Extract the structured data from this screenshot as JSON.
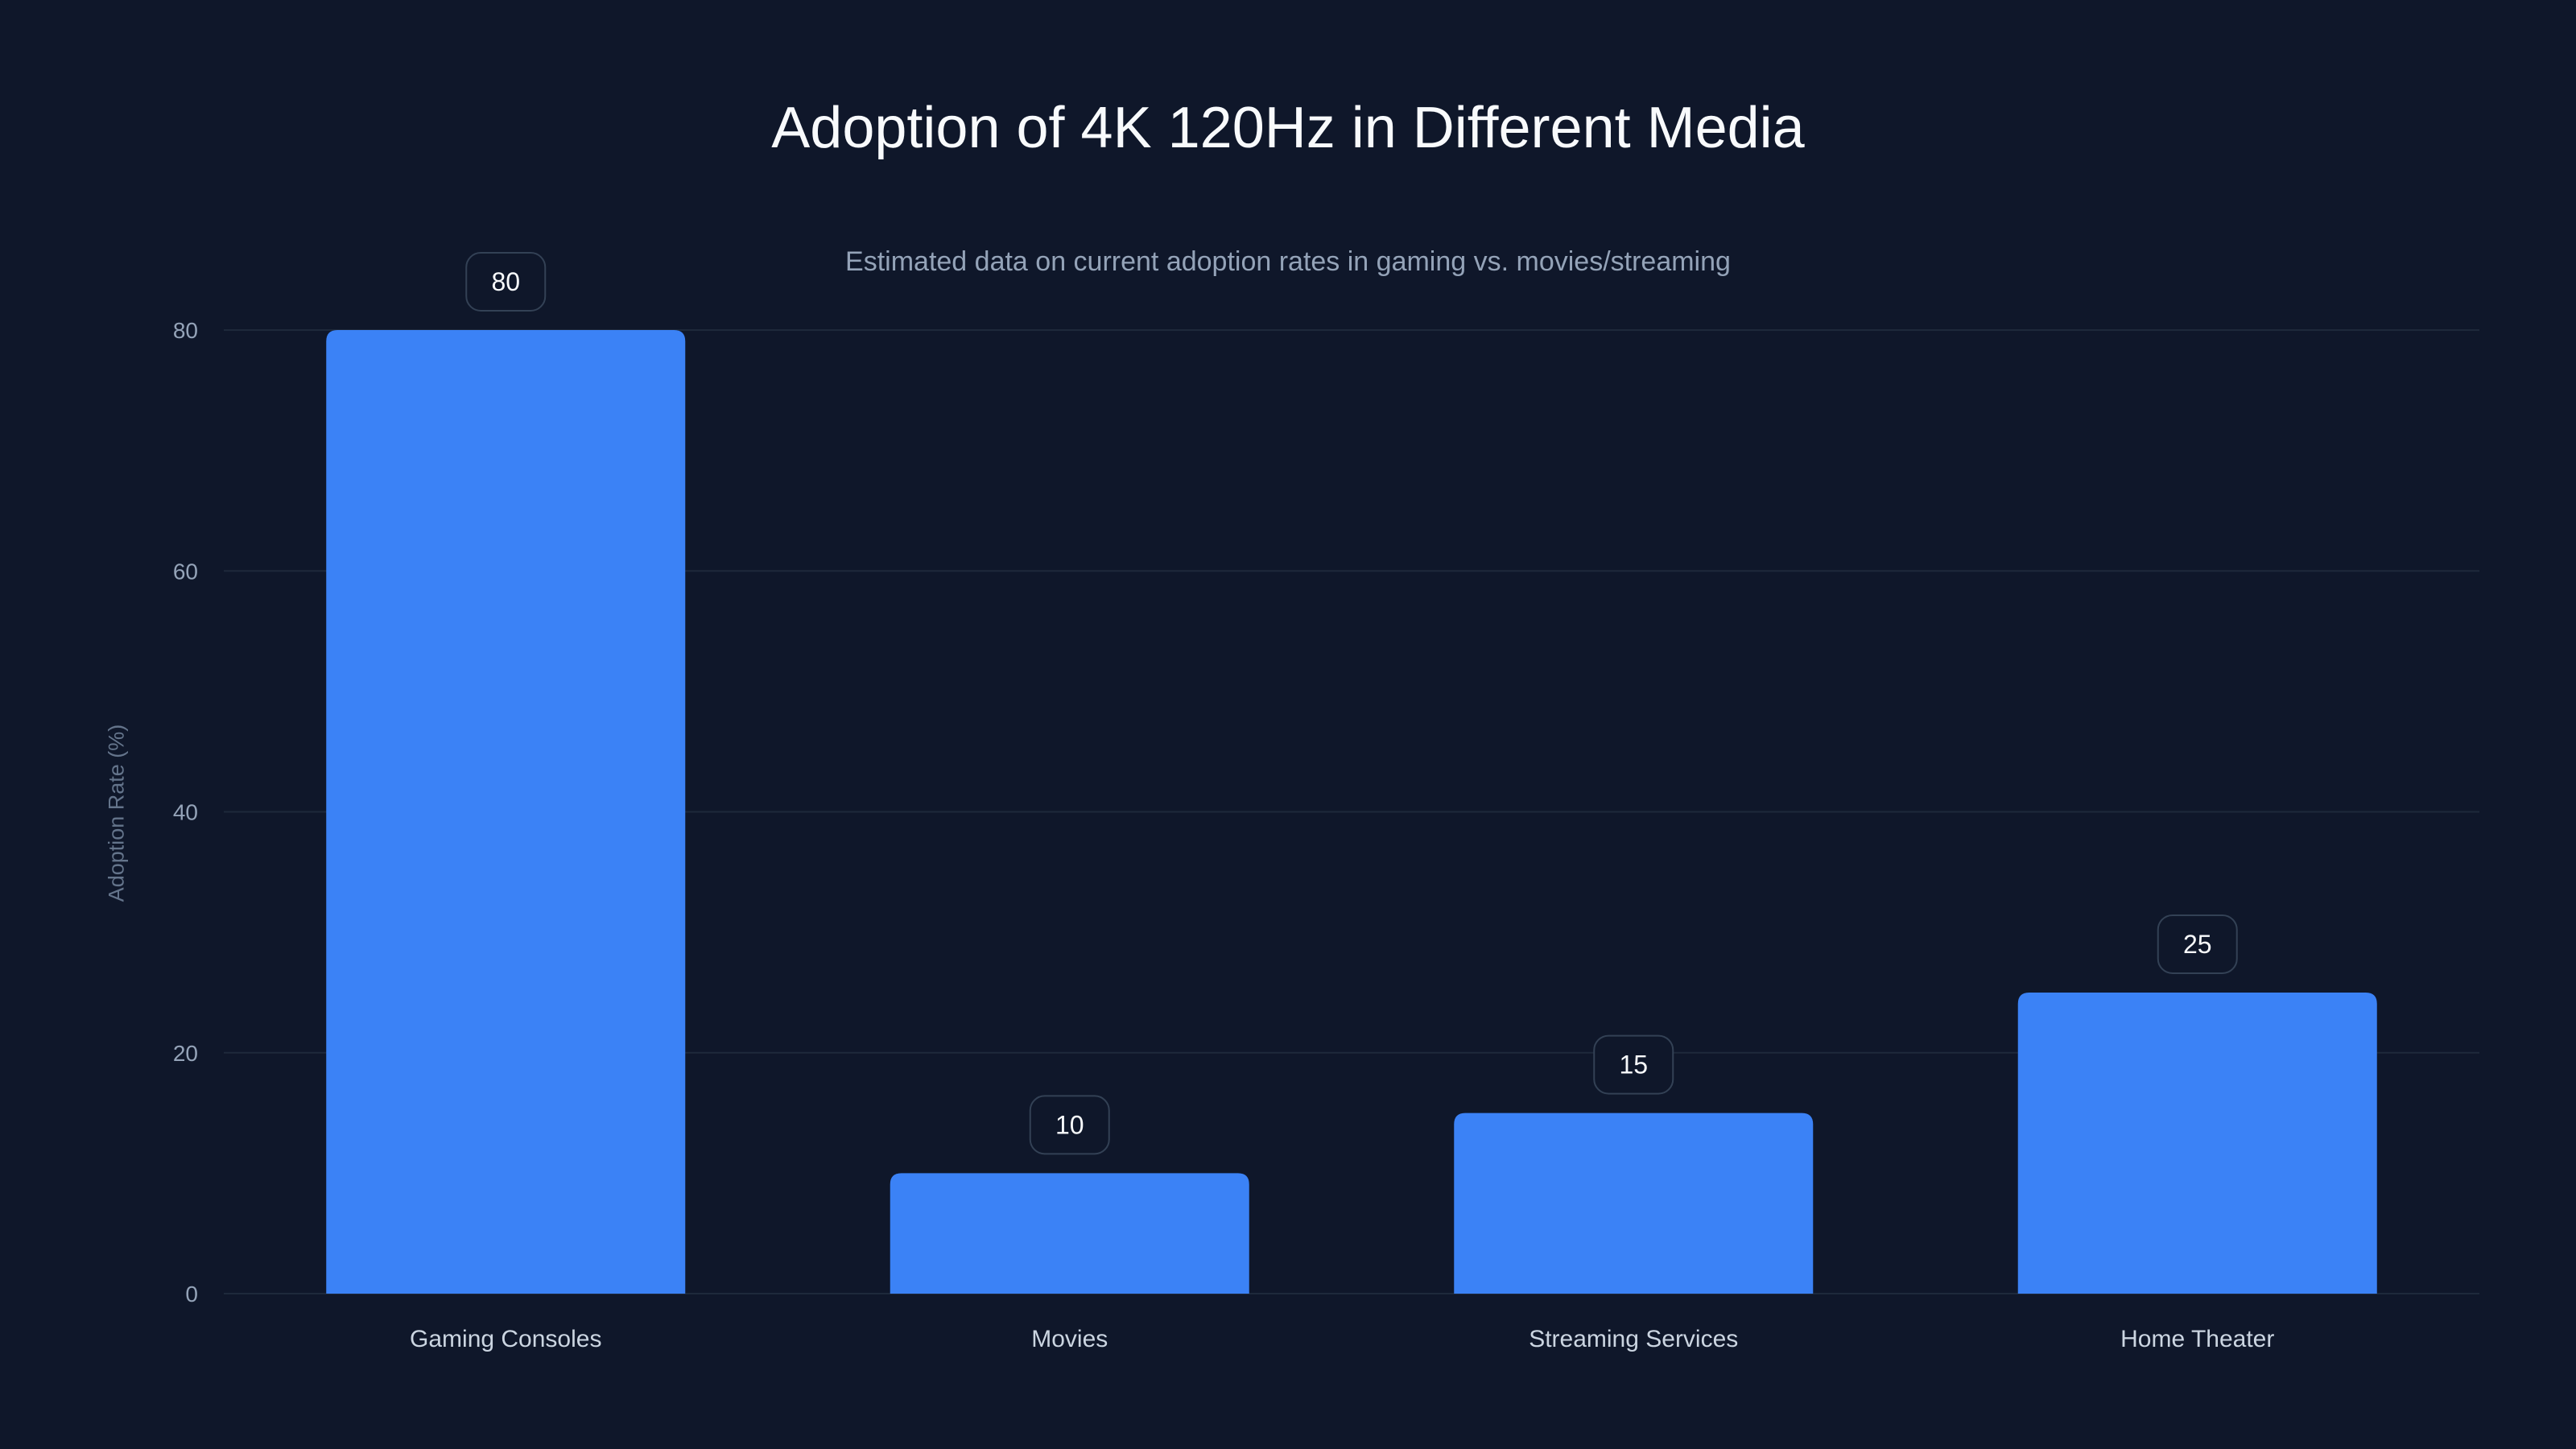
{
  "chart_data": {
    "type": "bar",
    "title": "Adoption of 4K 120Hz in Different Media",
    "subtitle": "Estimated data on current adoption rates in gaming vs. movies/streaming",
    "xlabel": "",
    "ylabel": "Adoption Rate (%)",
    "categories": [
      "Gaming Consoles",
      "Movies",
      "Streaming Services",
      "Home Theater"
    ],
    "values": [
      80,
      10,
      15,
      25
    ],
    "data_labels": [
      "80",
      "10",
      "15",
      "25"
    ],
    "ylim": [
      0,
      80
    ],
    "yticks": [
      0,
      20,
      40,
      60,
      80
    ],
    "ytick_labels": [
      "0",
      "20",
      "40",
      "60",
      "80"
    ],
    "grid": true,
    "colors": {
      "bar": "#3b82f6",
      "background": "#0f172a",
      "grid": "#1e293b",
      "label_border": "#334155"
    }
  }
}
